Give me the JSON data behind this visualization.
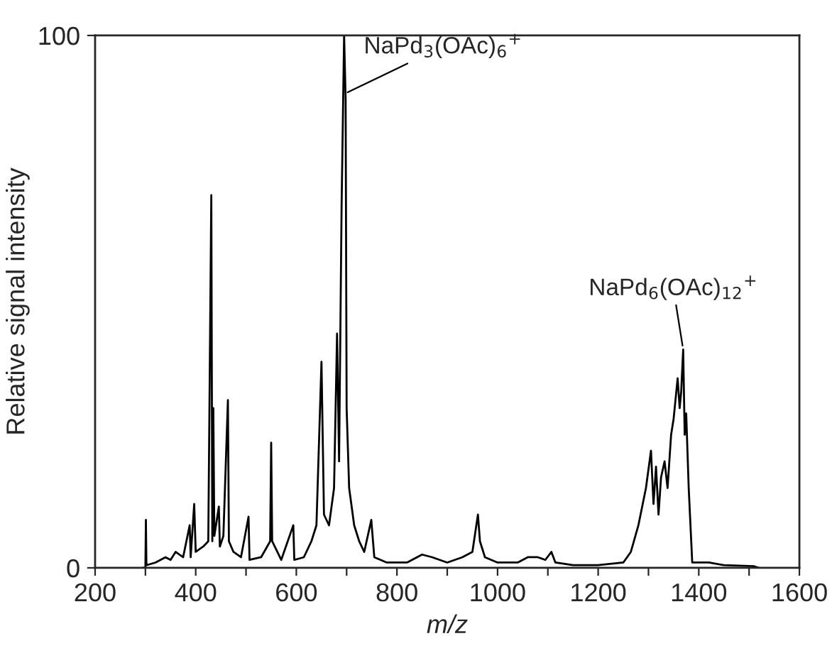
{
  "chart_data": {
    "type": "line",
    "xlabel": "m/z",
    "ylabel": "Relative signal intensity",
    "xlim": [
      200,
      1600
    ],
    "ylim": [
      0,
      100
    ],
    "xticks": [
      200,
      {
        "value": 300,
        "label": null
      },
      400,
      {
        "value": 500,
        "label": null
      },
      600,
      {
        "value": 700,
        "label": null
      },
      800,
      {
        "value": 900,
        "label": null
      },
      1000,
      {
        "value": 1100,
        "label": null
      },
      1200,
      {
        "value": 1300,
        "label": null
      },
      1400,
      {
        "value": 1500,
        "label": null
      },
      1600
    ],
    "yticks": [
      0,
      100
    ],
    "series": [
      {
        "color": "#000000",
        "x": [
          295,
          300,
          301,
          302,
          320,
          340,
          350,
          360,
          375,
          388,
          390,
          397,
          400,
          415,
          425,
          431,
          433,
          435,
          437,
          446,
          448,
          455,
          464,
          466,
          475,
          490,
          505,
          507,
          530,
          548,
          550,
          552,
          570,
          594,
          596,
          615,
          630,
          640,
          650,
          655,
          665,
          675,
          681,
          685,
          690,
          695,
          698,
          700,
          705,
          715,
          725,
          735,
          749,
          755,
          780,
          820,
          850,
          870,
          900,
          930,
          950,
          961,
          965,
          975,
          1000,
          1040,
          1060,
          1080,
          1095,
          1107,
          1115,
          1150,
          1200,
          1250,
          1265,
          1280,
          1295,
          1305,
          1310,
          1315,
          1320,
          1325,
          1332,
          1338,
          1345,
          1350,
          1358,
          1362,
          1365,
          1369,
          1372,
          1375,
          1380,
          1387,
          1420,
          1450,
          1510,
          1520
        ],
        "values": [
          0,
          0,
          9,
          0.5,
          1,
          2,
          1.5,
          3,
          2,
          8,
          2,
          12,
          3,
          4,
          5,
          70,
          5,
          30,
          6,
          11.5,
          4,
          6,
          31.5,
          5,
          3,
          2,
          9.6,
          1.5,
          2,
          5,
          23.5,
          5,
          1.5,
          8,
          1.5,
          2,
          5,
          8,
          38.7,
          10,
          8,
          15,
          44,
          20,
          68,
          100,
          88,
          30,
          15,
          8,
          5,
          3,
          9,
          2,
          1,
          1,
          2.5,
          2,
          1,
          2,
          3,
          10,
          5,
          2,
          1,
          1,
          2,
          2,
          1.5,
          3,
          1,
          0.5,
          0.5,
          1,
          3,
          8,
          15,
          22,
          12,
          19,
          10,
          17,
          20,
          15,
          25,
          28,
          35.6,
          30,
          33,
          41,
          25,
          29,
          15,
          1,
          1,
          0.5,
          0.3,
          0
        ]
      }
    ],
    "annotations": [
      {
        "text": "NaPd$_{3}$(OAc)$_{6}$$^{+}$",
        "x": 695,
        "y": 89
      },
      {
        "text": "NaPd$_{6}$(OAc)$_{12}$$^{+}$",
        "x": 1369,
        "y": 41
      }
    ],
    "grid": false,
    "legend": false
  }
}
